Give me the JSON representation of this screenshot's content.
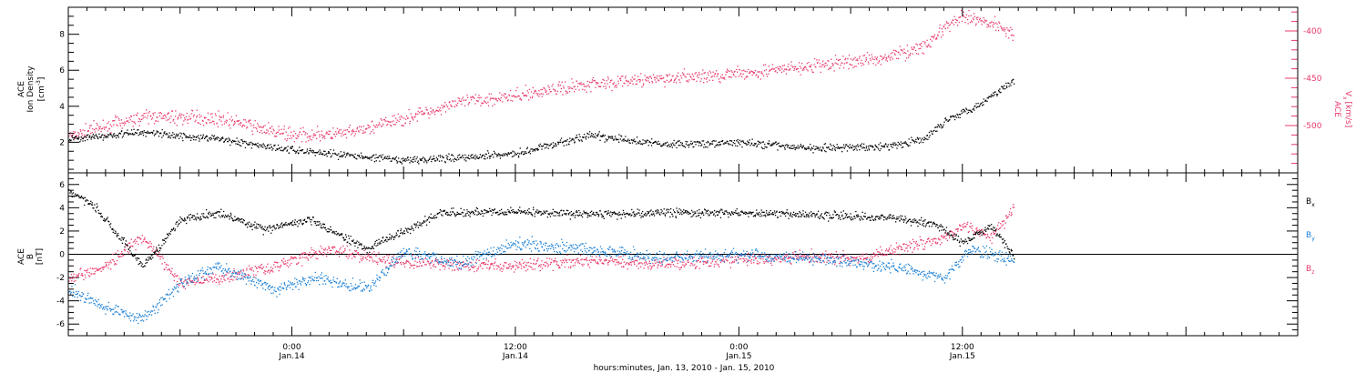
{
  "colors": {
    "black": "#000000",
    "by_blue": "#1a7fd4",
    "bz_pink": "#e8386a",
    "vx_pink": "#e8386a"
  },
  "chart_data": [
    {
      "type": "scatter",
      "title": "",
      "xlabel": "hours:minutes, Jan. 13, 2010 - Jan. 15, 2010",
      "x_ticks": [
        {
          "time": "Jan.14 00:00",
          "label_line1": "0:00",
          "label_line2": "Jan.14"
        },
        {
          "time": "Jan.14 12:00",
          "label_line1": "12:00",
          "label_line2": "Jan.14"
        },
        {
          "time": "Jan.15 00:00",
          "label_line1": "0:00",
          "label_line2": "Jan.15"
        },
        {
          "time": "Jan.15 12:00",
          "label_line1": "12:00",
          "label_line2": "Jan.15"
        }
      ],
      "xlim": [
        "Jan.13 12:00",
        "Jan.16 06:00"
      ],
      "ylabel_left": {
        "line1": "ACE",
        "line2": "Ion Density",
        "line3": "[cm",
        "sup": "-3",
        "close": "]"
      },
      "ylabel_right": {
        "line1": "ACE",
        "main": "V",
        "sub": "x",
        "unit": "[km/s]"
      },
      "ylim_left": [
        0.3,
        9.5
      ],
      "ylim_right": [
        -550,
        -375
      ],
      "yticks_left": [
        "2",
        "4",
        "6",
        "8"
      ],
      "yticks_right": [
        "-400",
        "-450",
        "-500"
      ],
      "series": [
        {
          "name": "",
          "axis": "left",
          "color": "#000000",
          "x": [
            "Jan.13 12:00",
            "Jan.13 16:00",
            "Jan.13 20:00",
            "Jan.14 00:00",
            "Jan.14 03:00",
            "Jan.14 06:00",
            "Jan.14 09:00",
            "Jan.14 12:00",
            "Jan.14 16:00",
            "Jan.14 20:00",
            "Jan.15 00:00",
            "Jan.15 04:00",
            "Jan.15 08:00",
            "Jan.15 10:00",
            "Jan.15 11:00",
            "Jan.15 13:00",
            "Jan.15 14:45"
          ],
          "y": [
            2.2,
            2.6,
            2.2,
            1.6,
            1.3,
            1.0,
            1.2,
            1.4,
            2.4,
            1.9,
            2.0,
            1.7,
            1.8,
            2.2,
            3.2,
            4.2,
            5.5
          ]
        },
        {
          "name": "",
          "axis": "right",
          "color": "#e8386a",
          "x": [
            "Jan.13 12:00",
            "Jan.13 16:00",
            "Jan.13 20:00",
            "Jan.14 00:00",
            "Jan.14 03:00",
            "Jan.14 06:00",
            "Jan.14 09:00",
            "Jan.14 12:00",
            "Jan.14 16:00",
            "Jan.14 20:00",
            "Jan.15 00:00",
            "Jan.15 04:00",
            "Jan.15 08:00",
            "Jan.15 10:00",
            "Jan.15 11:00",
            "Jan.15 12:00",
            "Jan.15 14:00",
            "Jan.15 14:45"
          ],
          "y": [
            -510,
            -490,
            -492,
            -510,
            -508,
            -492,
            -475,
            -468,
            -455,
            -450,
            -445,
            -437,
            -427,
            -415,
            -397,
            -385,
            -393,
            -405
          ]
        }
      ]
    },
    {
      "type": "scatter",
      "title": "",
      "ylabel": {
        "line1": "ACE",
        "line2": "B",
        "line3": "[nT]"
      },
      "ylim": [
        -7,
        7
      ],
      "yticks": [
        "6",
        "4",
        "2",
        "0",
        "-2",
        "-4",
        "-6"
      ],
      "zero_line": true,
      "legend_position": "right",
      "legend": [
        {
          "main": "B",
          "sub": "x",
          "color": "#000000"
        },
        {
          "main": "B",
          "sub": "y",
          "color": "#1a7fd4"
        },
        {
          "main": "B",
          "sub": "z",
          "color": "#e8386a"
        }
      ],
      "series": [
        {
          "name": "Bx",
          "color": "#000000",
          "x": [
            "Jan.13 12:00",
            "Jan.13 13:30",
            "Jan.13 16:00",
            "Jan.13 18:00",
            "Jan.13 20:00",
            "Jan.13 22:30",
            "Jan.14 01:00",
            "Jan.14 04:00",
            "Jan.14 08:00",
            "Jan.14 12:00",
            "Jan.14 16:00",
            "Jan.14 20:00",
            "Jan.15 00:00",
            "Jan.15 04:00",
            "Jan.15 08:00",
            "Jan.15 10:30",
            "Jan.15 12:00",
            "Jan.15 13:30",
            "Jan.15 14:45"
          ],
          "y": [
            5.5,
            4.0,
            -1.0,
            3.0,
            3.6,
            2.2,
            3.0,
            0.5,
            3.6,
            3.7,
            3.5,
            3.6,
            3.6,
            3.4,
            3.2,
            2.6,
            1.0,
            2.5,
            0.0
          ]
        },
        {
          "name": "By",
          "color": "#1a7fd4",
          "x": [
            "Jan.13 12:00",
            "Jan.13 14:00",
            "Jan.13 16:00",
            "Jan.13 18:00",
            "Jan.13 20:00",
            "Jan.13 23:00",
            "Jan.14 01:30",
            "Jan.14 04:00",
            "Jan.14 06:00",
            "Jan.14 09:00",
            "Jan.14 12:00",
            "Jan.14 16:00",
            "Jan.14 20:00",
            "Jan.15 00:00",
            "Jan.15 04:00",
            "Jan.15 07:00",
            "Jan.15 09:00",
            "Jan.15 11:00",
            "Jan.15 12:30",
            "Jan.15 14:45"
          ],
          "y": [
            -3.0,
            -4.5,
            -5.5,
            -2.5,
            -1.0,
            -3.0,
            -2.0,
            -3.0,
            0.3,
            -0.8,
            1.0,
            0.5,
            -0.3,
            0.0,
            -0.3,
            -0.8,
            -1.3,
            -2.0,
            0.5,
            -0.5
          ]
        },
        {
          "name": "Bz",
          "color": "#e8386a",
          "x": [
            "Jan.13 12:00",
            "Jan.13 14:00",
            "Jan.13 16:00",
            "Jan.13 18:00",
            "Jan.13 20:00",
            "Jan.13 23:00",
            "Jan.14 02:00",
            "Jan.14 05:00",
            "Jan.14 08:00",
            "Jan.14 12:00",
            "Jan.14 16:00",
            "Jan.14 20:00",
            "Jan.15 00:00",
            "Jan.15 04:00",
            "Jan.15 07:00",
            "Jan.15 09:00",
            "Jan.15 11:00",
            "Jan.15 12:00",
            "Jan.15 13:30",
            "Jan.15 14:45"
          ],
          "y": [
            -2.0,
            -1.0,
            1.5,
            -2.5,
            -2.0,
            -1.0,
            0.5,
            -0.5,
            -0.8,
            -1.0,
            -0.5,
            -0.8,
            -0.4,
            -0.2,
            -0.3,
            0.8,
            1.5,
            2.5,
            1.5,
            4.0
          ]
        }
      ]
    }
  ]
}
